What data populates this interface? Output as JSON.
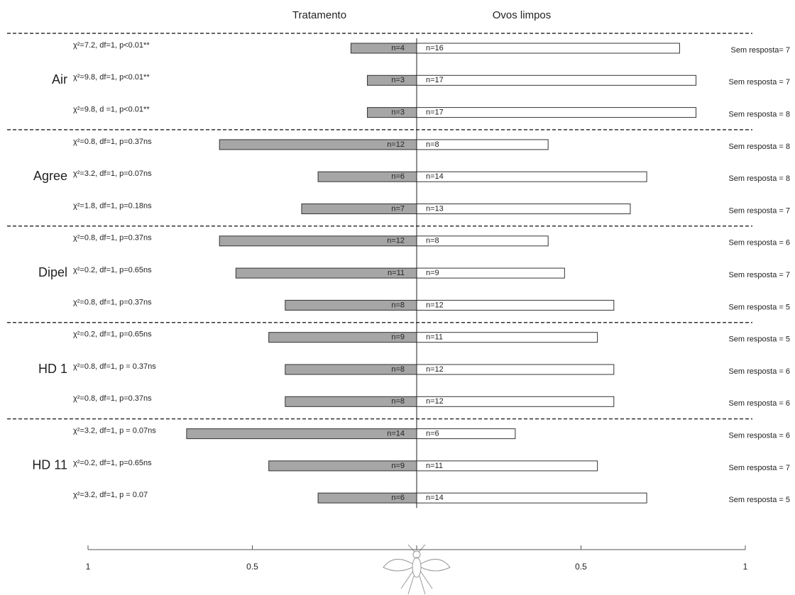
{
  "chart_data": {
    "type": "diverging-bar",
    "groups": [
      "Air",
      "Agree",
      "Dipel",
      "HD 1",
      "HD 11"
    ],
    "xlim": [
      0,
      1
    ],
    "xticks": [
      1,
      0.5
    ],
    "series": [
      {
        "name": "Tratamento",
        "color": "#a6a6a6",
        "values": [
          0.2,
          0.15,
          0.15,
          0.6,
          0.3,
          0.35,
          0.6,
          0.55,
          0.4,
          0.45,
          0.4,
          0.4,
          0.7,
          0.45,
          0.3
        ],
        "count_labels": [
          "n=4",
          "n=3",
          "n=3",
          "n=12",
          "n=6",
          "n=7",
          "n=12",
          "n=11",
          "n=8",
          "n=9",
          "n=8",
          "n=8",
          "n=14",
          "n=9",
          "n=6"
        ]
      },
      {
        "name": "Ovos limpos",
        "color": "#ffffff",
        "values": [
          0.8,
          0.85,
          0.85,
          0.4,
          0.7,
          0.65,
          0.4,
          0.45,
          0.6,
          0.55,
          0.6,
          0.6,
          0.3,
          0.55,
          0.7
        ],
        "count_labels": [
          "n=16",
          "n=17",
          "n=17",
          "n=8",
          "n=14",
          "n=13",
          "n=8",
          "n=9",
          "n=12",
          "n=11",
          "n=12",
          "n=12",
          "n=6",
          "n=11",
          "n=14"
        ]
      }
    ],
    "stats": [
      "χ²=7.2, df=1, p<0.01**",
      "χ²=9.8, df=1, p<0.01**",
      "χ²=9.8, d =1, p<0.01**",
      "χ²=0.8, df=1, p=0.37ns",
      "χ²=3.2, df=1, p=0.07ns",
      "χ²=1.8, df=1, p=0.18ns",
      "χ²=0.8, df=1, p=0.37ns",
      "χ²=0.2, df=1, p=0.65ns",
      "χ²=0.8, df=1, p=0.37ns",
      "χ²=0.2, df=1, p=0.65ns",
      "χ²=0.8, df=1, p = 0.37ns",
      "χ²=0.8, df=1, p=0.37ns",
      "χ²=3.2, df=1, p = 0.07ns",
      "χ²=0.2, df=1, p=0.65ns",
      "χ²=3.2, df=1, p = 0.07"
    ],
    "no_response": [
      "Sem resposta= 7",
      "Sem resposta = 7",
      "Sem resposta = 8",
      "Sem resposta = 8",
      "Sem resposta = 8",
      "Sem resposta = 7",
      "Sem resposta = 6",
      "Sem resposta = 7",
      "Sem resposta = 5",
      "Sem resposta = 5",
      "Sem resposta = 6",
      "Sem resposta = 6",
      "Sem resposta = 6",
      "Sem resposta = 7",
      "Sem resposta = 5"
    ]
  }
}
